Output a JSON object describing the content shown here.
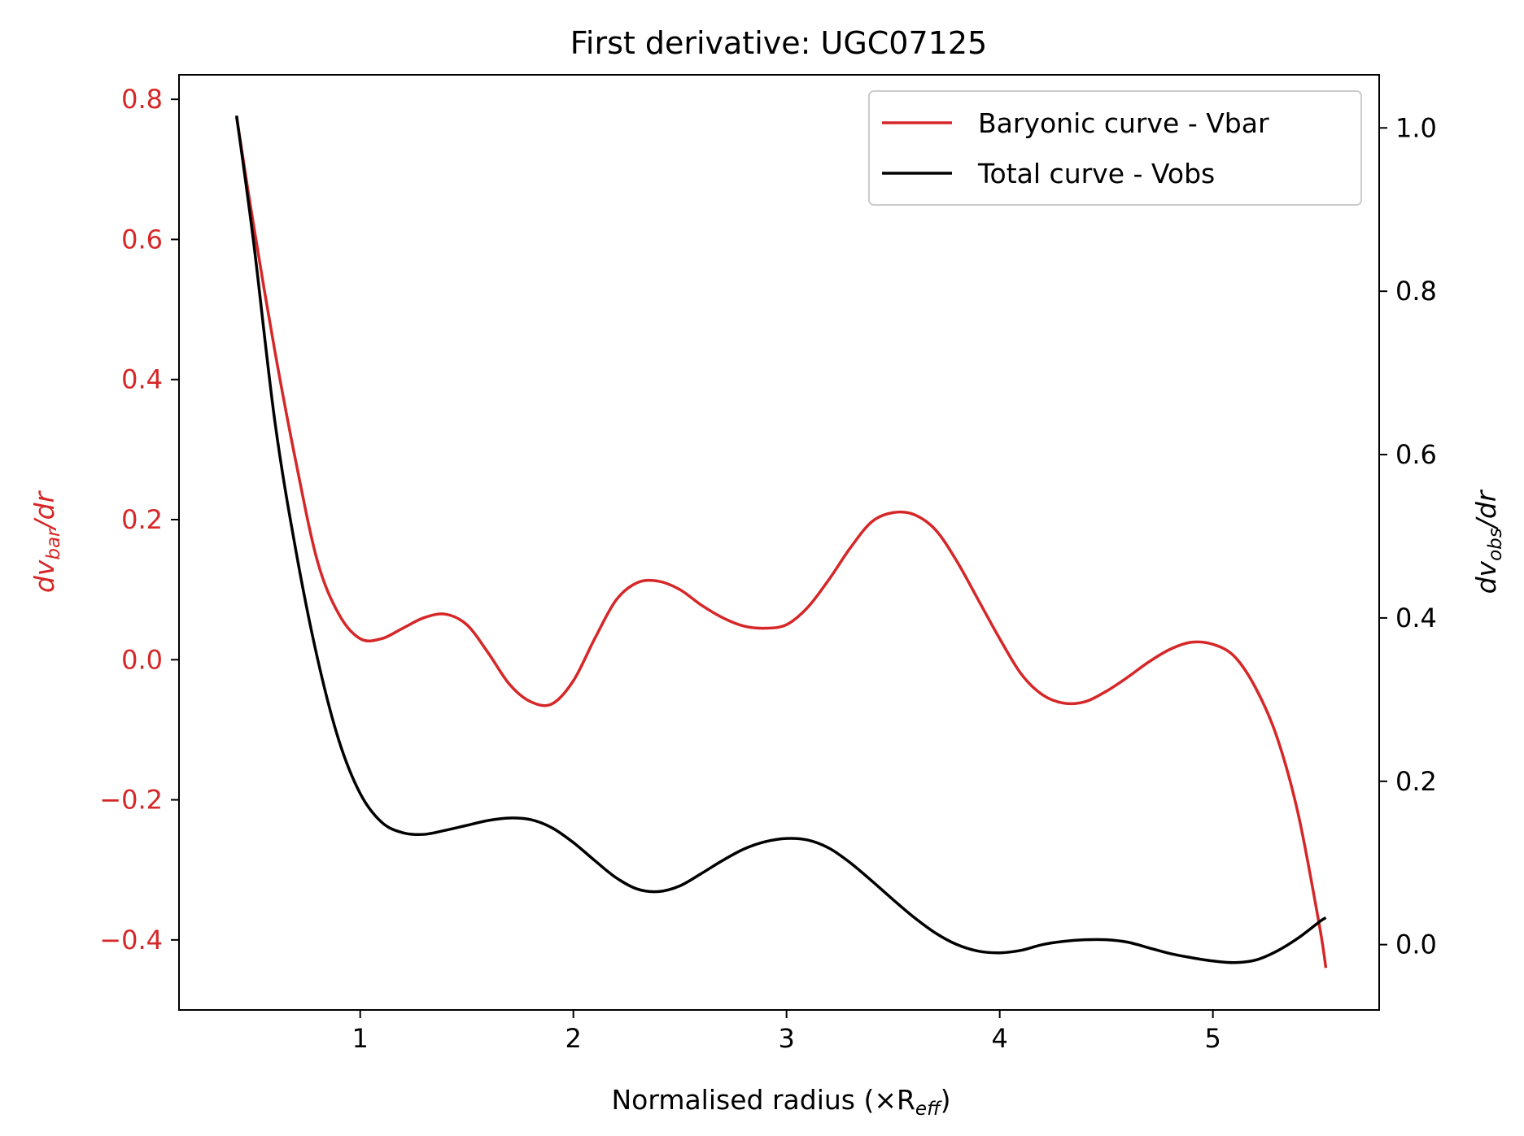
{
  "chart_data": {
    "type": "line",
    "title": "First derivative: UGC07125",
    "xlabel": "Normalised radius (×R",
    "xlabel_sub": "eff",
    "xlabel_close": ")",
    "ylabel_left": "dv",
    "ylabel_left_sub": "bar",
    "ylabel_left_tail": "/dr",
    "ylabel_right": "dv",
    "ylabel_right_sub": "obs",
    "ylabel_right_tail": "/dr",
    "xlim": [
      0.15,
      5.78
    ],
    "ylim_left": [
      -0.5,
      0.835
    ],
    "ylim_right": [
      -0.08,
      1.065
    ],
    "x_ticks": [
      1,
      2,
      3,
      4,
      5
    ],
    "x_tick_labels": [
      "1",
      "2",
      "3",
      "4",
      "5"
    ],
    "y_left_ticks": [
      -0.4,
      -0.2,
      0.0,
      0.2,
      0.4,
      0.6,
      0.8
    ],
    "y_left_tick_labels": [
      "−0.4",
      "−0.2",
      "0.0",
      "0.2",
      "0.4",
      "0.6",
      "0.8"
    ],
    "y_right_ticks": [
      0.0,
      0.2,
      0.4,
      0.6,
      0.8,
      1.0
    ],
    "y_right_tick_labels": [
      "0.0",
      "0.2",
      "0.4",
      "0.6",
      "0.8",
      "1.0"
    ],
    "legend_position": "top-right",
    "series": [
      {
        "name": "Baryonic curve - Vbar",
        "axis": "left",
        "color": "#d62728",
        "x": [
          0.42,
          0.5,
          0.6,
          0.7,
          0.8,
          0.9,
          1.0,
          1.1,
          1.2,
          1.3,
          1.4,
          1.5,
          1.6,
          1.7,
          1.8,
          1.9,
          2.0,
          2.1,
          2.2,
          2.3,
          2.4,
          2.5,
          2.6,
          2.7,
          2.8,
          2.9,
          3.0,
          3.1,
          3.2,
          3.3,
          3.4,
          3.5,
          3.6,
          3.7,
          3.8,
          3.9,
          4.0,
          4.1,
          4.2,
          4.3,
          4.4,
          4.5,
          4.6,
          4.7,
          4.8,
          4.9,
          5.0,
          5.1,
          5.2,
          5.3,
          5.4,
          5.5,
          5.53
        ],
        "y": [
          0.775,
          0.62,
          0.44,
          0.28,
          0.14,
          0.065,
          0.03,
          0.03,
          0.045,
          0.06,
          0.065,
          0.05,
          0.01,
          -0.035,
          -0.06,
          -0.063,
          -0.03,
          0.03,
          0.085,
          0.11,
          0.112,
          0.1,
          0.078,
          0.06,
          0.048,
          0.045,
          0.05,
          0.075,
          0.115,
          0.16,
          0.197,
          0.21,
          0.207,
          0.185,
          0.14,
          0.085,
          0.03,
          -0.02,
          -0.05,
          -0.062,
          -0.06,
          -0.045,
          -0.025,
          -0.003,
          0.015,
          0.025,
          0.022,
          0.005,
          -0.04,
          -0.11,
          -0.22,
          -0.38,
          -0.44
        ]
      },
      {
        "name": "Total curve - Vobs",
        "axis": "right",
        "color": "#000000",
        "x": [
          0.42,
          0.5,
          0.6,
          0.7,
          0.8,
          0.9,
          1.0,
          1.1,
          1.2,
          1.3,
          1.4,
          1.5,
          1.6,
          1.7,
          1.8,
          1.9,
          2.0,
          2.1,
          2.2,
          2.3,
          2.4,
          2.5,
          2.6,
          2.7,
          2.8,
          2.9,
          3.0,
          3.1,
          3.2,
          3.3,
          3.4,
          3.5,
          3.6,
          3.7,
          3.8,
          3.9,
          4.0,
          4.1,
          4.2,
          4.3,
          4.4,
          4.5,
          4.6,
          4.7,
          4.8,
          4.9,
          5.0,
          5.1,
          5.2,
          5.3,
          5.4,
          5.5,
          5.53
        ],
        "y": [
          1.015,
          0.86,
          0.64,
          0.48,
          0.35,
          0.25,
          0.185,
          0.15,
          0.137,
          0.135,
          0.14,
          0.146,
          0.152,
          0.155,
          0.153,
          0.143,
          0.125,
          0.103,
          0.082,
          0.068,
          0.065,
          0.072,
          0.087,
          0.103,
          0.117,
          0.126,
          0.13,
          0.128,
          0.118,
          0.1,
          0.078,
          0.055,
          0.033,
          0.014,
          0.0,
          -0.008,
          -0.01,
          -0.007,
          0.0,
          0.004,
          0.006,
          0.006,
          0.003,
          -0.004,
          -0.011,
          -0.016,
          -0.02,
          -0.022,
          -0.019,
          -0.008,
          0.008,
          0.028,
          0.033
        ]
      }
    ]
  }
}
